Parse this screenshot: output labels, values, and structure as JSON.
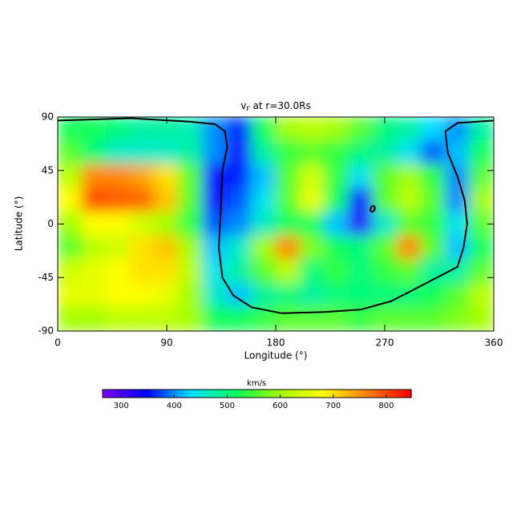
{
  "chart_data": {
    "type": "heatmap",
    "title": {
      "main": "v",
      "sub": "r",
      "rest": "at r=30.0Rs"
    },
    "x_label": "Longitude (°)",
    "y_label": "Latitude (°)",
    "xlim": [
      0,
      360
    ],
    "ylim": [
      -90,
      90
    ],
    "xticks": [
      0,
      90,
      180,
      270,
      360
    ],
    "yticks": [
      90,
      45,
      0,
      -45,
      -90
    ],
    "x": [
      10,
      30,
      50,
      70,
      90,
      110,
      130,
      150,
      170,
      190,
      210,
      230,
      250,
      270,
      290,
      310,
      330,
      350
    ],
    "y": [
      80,
      60,
      40,
      20,
      0,
      -20,
      -40,
      -60,
      -80
    ],
    "values": [
      [
        520,
        520,
        500,
        480,
        480,
        470,
        400,
        360,
        520,
        600,
        620,
        600,
        560,
        500,
        480,
        430,
        400,
        480
      ],
      [
        560,
        500,
        460,
        460,
        460,
        480,
        400,
        340,
        480,
        540,
        560,
        540,
        500,
        480,
        440,
        380,
        420,
        520
      ],
      [
        620,
        760,
        760,
        740,
        700,
        560,
        340,
        360,
        420,
        560,
        640,
        540,
        440,
        560,
        600,
        540,
        400,
        560
      ],
      [
        680,
        800,
        790,
        780,
        720,
        560,
        340,
        380,
        440,
        560,
        660,
        520,
        340,
        560,
        620,
        560,
        400,
        600
      ],
      [
        600,
        680,
        680,
        640,
        600,
        540,
        380,
        400,
        460,
        520,
        520,
        420,
        320,
        460,
        560,
        540,
        440,
        560
      ],
      [
        560,
        620,
        640,
        700,
        720,
        600,
        420,
        460,
        600,
        760,
        580,
        520,
        500,
        560,
        760,
        560,
        420,
        520
      ],
      [
        640,
        660,
        680,
        700,
        700,
        620,
        440,
        480,
        560,
        620,
        500,
        540,
        500,
        540,
        560,
        480,
        480,
        560
      ],
      [
        660,
        660,
        680,
        680,
        660,
        600,
        460,
        420,
        480,
        500,
        480,
        500,
        500,
        500,
        500,
        520,
        560,
        620
      ],
      [
        600,
        600,
        620,
        620,
        620,
        600,
        520,
        520,
        540,
        560,
        560,
        560,
        540,
        560,
        560,
        560,
        580,
        600
      ]
    ],
    "colormap": [
      "#7f00ff",
      "#0000ff",
      "#00e0ff",
      "#00ff60",
      "#a0ff00",
      "#ffff00",
      "#ff8000",
      "#ff0000"
    ],
    "clim": [
      265,
      847
    ],
    "colorbar_label": "km/s",
    "colorbar_ticks": [
      300,
      400,
      500,
      600,
      700,
      800
    ],
    "contour": {
      "label": "0",
      "label_at": [
        260,
        12
      ],
      "lon": [
        0,
        60,
        110,
        130,
        138,
        140,
        136,
        135,
        134,
        133,
        136,
        145,
        160,
        185,
        220,
        250,
        275,
        300,
        330,
        335,
        338,
        336,
        330,
        322,
        320,
        330,
        360
      ],
      "lat": [
        87,
        89,
        86,
        84,
        78,
        65,
        45,
        20,
        0,
        -20,
        -45,
        -60,
        -70,
        -75,
        -74,
        -72,
        -65,
        -52,
        -36,
        -20,
        0,
        20,
        40,
        60,
        78,
        85,
        87
      ]
    }
  }
}
